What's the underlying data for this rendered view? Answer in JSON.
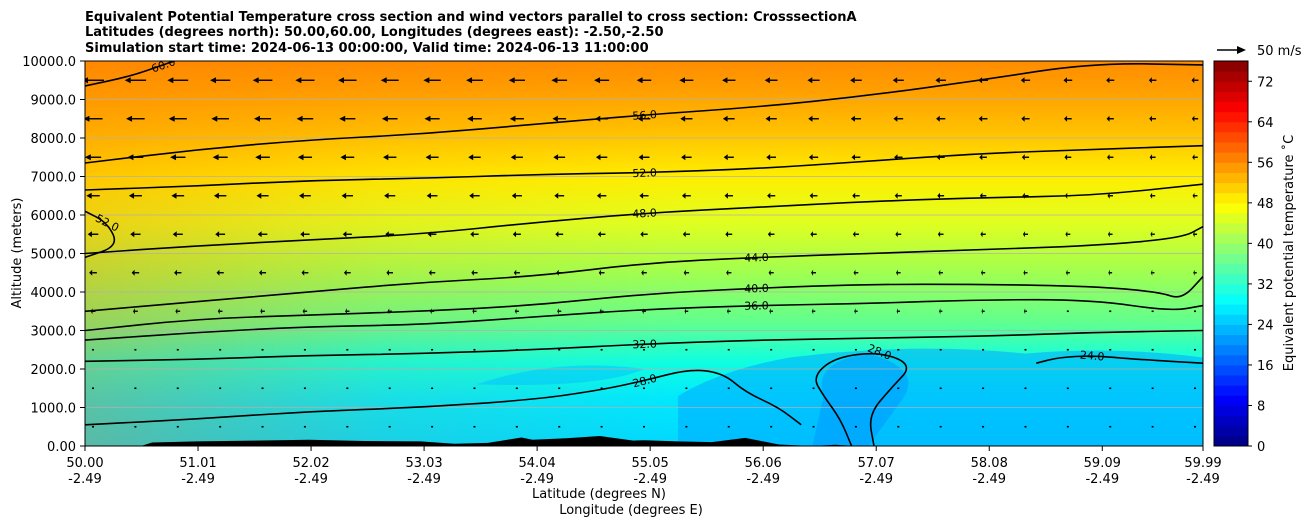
{
  "chart_data": {
    "type": "contourf",
    "title_lines": [
      "Equivalent Potential Temperature cross section and wind vectors parallel to cross section: CrosssectionA",
      "Latitudes (degrees north): 50.00,60.00, Longitudes (degrees east): -2.50,-2.50",
      "Simulation start time: 2024-06-13 00:00:00, Valid time: 2024-06-13 11:00:00"
    ],
    "xlabel": "Latitude (degrees N)",
    "xlabel2": "Longitude (degrees E)",
    "ylabel": "Altitude (meters)",
    "xlim": [
      50.0,
      59.99
    ],
    "ylim": [
      0,
      10000
    ],
    "x_ticks": [
      {
        "lat": "50.00",
        "lon": "-2.49",
        "value": 50.0
      },
      {
        "lat": "51.01",
        "lon": "-2.49",
        "value": 51.01
      },
      {
        "lat": "52.02",
        "lon": "-2.49",
        "value": 52.02
      },
      {
        "lat": "53.03",
        "lon": "-2.49",
        "value": 53.03
      },
      {
        "lat": "54.04",
        "lon": "-2.49",
        "value": 54.04
      },
      {
        "lat": "55.05",
        "lon": "-2.49",
        "value": 55.05
      },
      {
        "lat": "56.06",
        "lon": "-2.49",
        "value": 56.06
      },
      {
        "lat": "57.07",
        "lon": "-2.49",
        "value": 57.07
      },
      {
        "lat": "58.08",
        "lon": "-2.49",
        "value": 58.08
      },
      {
        "lat": "59.09",
        "lon": "-2.49",
        "value": 59.09
      },
      {
        "lat": "59.99",
        "lon": "-2.49",
        "value": 59.99
      }
    ],
    "y_ticks": [
      {
        "label": "0.00",
        "value": 0
      },
      {
        "label": "1000.0",
        "value": 1000
      },
      {
        "label": "2000.0",
        "value": 2000
      },
      {
        "label": "3000.0",
        "value": 3000
      },
      {
        "label": "4000.0",
        "value": 4000
      },
      {
        "label": "5000.0",
        "value": 5000
      },
      {
        "label": "6000.0",
        "value": 6000
      },
      {
        "label": "7000.0",
        "value": 7000
      },
      {
        "label": "8000.0",
        "value": 8000
      },
      {
        "label": "9000.0",
        "value": 9000
      },
      {
        "label": "10000.0",
        "value": 10000
      }
    ],
    "grid": "horizontal",
    "colorbar": {
      "label": "Equivalent potential temperature ˚C",
      "range": [
        0,
        76
      ],
      "ticks": [
        "0",
        "8",
        "16",
        "24",
        "32",
        "40",
        "48",
        "56",
        "64",
        "72"
      ],
      "tick_values": [
        0,
        8,
        16,
        24,
        32,
        40,
        48,
        56,
        64,
        72
      ]
    },
    "quiver_key": {
      "label": "50 m/s",
      "value": 50
    },
    "contours": [
      {
        "level": 24,
        "label": "24.0",
        "points": [
          [
            58.5,
            2150
          ],
          [
            58.7,
            2300
          ],
          [
            59.0,
            2350
          ],
          [
            59.4,
            2250
          ],
          [
            59.99,
            2150
          ]
        ]
      },
      {
        "level": 28,
        "label": "28.0",
        "points": [
          [
            50.0,
            550
          ],
          [
            51.0,
            700
          ],
          [
            52.0,
            900
          ],
          [
            53.0,
            1000
          ],
          [
            54.0,
            1200
          ],
          [
            54.6,
            1450
          ],
          [
            55.0,
            1700
          ],
          [
            55.4,
            2000
          ],
          [
            55.7,
            1900
          ],
          [
            55.9,
            1400
          ],
          [
            56.2,
            1000
          ],
          [
            56.4,
            550
          ]
        ]
      },
      {
        "level": 28,
        "label": "28.0",
        "points": [
          [
            56.85,
            0
          ],
          [
            56.75,
            700
          ],
          [
            56.6,
            1300
          ],
          [
            56.5,
            1800
          ],
          [
            56.7,
            2300
          ],
          [
            57.1,
            2450
          ],
          [
            57.4,
            2100
          ],
          [
            57.2,
            1500
          ],
          [
            57.0,
            800
          ],
          [
            57.05,
            0
          ]
        ]
      },
      {
        "level": 32,
        "label": "32.0",
        "points": [
          [
            50.0,
            2200
          ],
          [
            51.0,
            2250
          ],
          [
            52.0,
            2350
          ],
          [
            53.0,
            2400
          ],
          [
            54.0,
            2500
          ],
          [
            55.0,
            2650
          ],
          [
            56.0,
            2750
          ],
          [
            57.0,
            2800
          ],
          [
            58.0,
            2850
          ],
          [
            59.0,
            2950
          ],
          [
            59.99,
            3000
          ]
        ]
      },
      {
        "level": 36,
        "label": "36.0",
        "points": [
          [
            50.0,
            2750
          ],
          [
            51.0,
            2950
          ],
          [
            52.0,
            3100
          ],
          [
            53.0,
            3150
          ],
          [
            54.0,
            3350
          ],
          [
            55.0,
            3550
          ],
          [
            56.0,
            3650
          ],
          [
            57.0,
            3700
          ],
          [
            58.0,
            3800
          ],
          [
            59.0,
            3800
          ],
          [
            59.7,
            3500
          ],
          [
            59.99,
            3650
          ]
        ]
      },
      {
        "level": 40,
        "label": "40.0",
        "points": [
          [
            50.0,
            3000
          ],
          [
            51.0,
            3300
          ],
          [
            52.0,
            3400
          ],
          [
            53.0,
            3500
          ],
          [
            54.0,
            3650
          ],
          [
            55.0,
            3950
          ],
          [
            56.0,
            4100
          ],
          [
            57.0,
            4200
          ],
          [
            58.0,
            4200
          ],
          [
            59.0,
            4150
          ],
          [
            59.6,
            4000
          ],
          [
            59.8,
            3800
          ],
          [
            59.99,
            4400
          ]
        ]
      },
      {
        "level": 44,
        "label": "44.0",
        "points": [
          [
            50.0,
            3500
          ],
          [
            51.0,
            3750
          ],
          [
            52.0,
            4000
          ],
          [
            53.0,
            4250
          ],
          [
            54.0,
            4400
          ],
          [
            55.0,
            4750
          ],
          [
            56.0,
            4900
          ],
          [
            57.0,
            5000
          ],
          [
            58.0,
            5100
          ],
          [
            59.0,
            5200
          ],
          [
            59.8,
            5400
          ],
          [
            59.99,
            5700
          ]
        ]
      },
      {
        "level": 48,
        "label": "48.0",
        "points": [
          [
            50.0,
            5000
          ],
          [
            51.0,
            5200
          ],
          [
            52.0,
            5350
          ],
          [
            53.0,
            5500
          ],
          [
            54.0,
            5800
          ],
          [
            55.0,
            6050
          ],
          [
            56.0,
            6200
          ],
          [
            57.0,
            6350
          ],
          [
            58.0,
            6450
          ],
          [
            59.0,
            6500
          ],
          [
            59.99,
            6800
          ]
        ]
      },
      {
        "level": 52,
        "label": "52.0",
        "points": [
          [
            50.0,
            6650
          ],
          [
            51.0,
            6750
          ],
          [
            52.0,
            6900
          ],
          [
            53.0,
            6950
          ],
          [
            54.0,
            7050
          ],
          [
            55.0,
            7100
          ],
          [
            56.0,
            7200
          ],
          [
            57.0,
            7400
          ],
          [
            58.0,
            7600
          ],
          [
            59.0,
            7700
          ],
          [
            59.99,
            7800
          ]
        ]
      },
      {
        "level": 52,
        "label": "52.0",
        "points": [
          [
            50.0,
            4900
          ],
          [
            50.3,
            5200
          ],
          [
            50.2,
            5800
          ],
          [
            50.0,
            6100
          ]
        ]
      },
      {
        "level": 56,
        "label": "56.0",
        "points": [
          [
            50.0,
            7350
          ],
          [
            51.0,
            7700
          ],
          [
            52.0,
            7950
          ],
          [
            53.0,
            8100
          ],
          [
            54.0,
            8350
          ],
          [
            55.0,
            8600
          ],
          [
            56.0,
            8800
          ],
          [
            57.0,
            9100
          ],
          [
            58.0,
            9500
          ],
          [
            59.0,
            9950
          ],
          [
            59.99,
            9900
          ]
        ]
      },
      {
        "level": 60,
        "label": "60.0",
        "points": [
          [
            50.0,
            9350
          ],
          [
            50.4,
            9600
          ],
          [
            50.7,
            9900
          ],
          [
            50.8,
            10000
          ]
        ]
      }
    ]
  }
}
